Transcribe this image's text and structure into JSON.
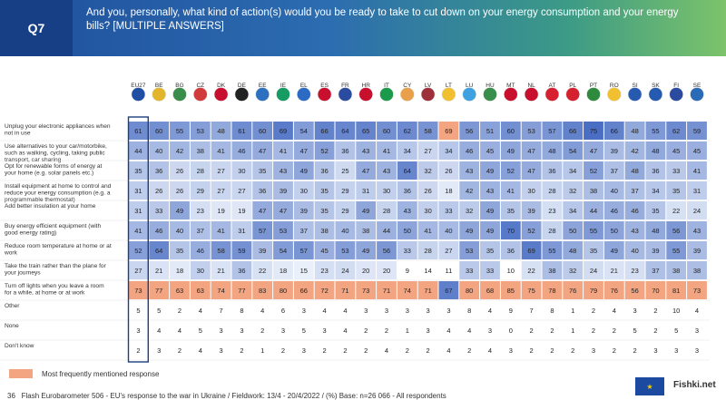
{
  "header": {
    "question_number": "Q7",
    "title": "And you, personally, what kind of action(s) would you be ready to take to cut down on your energy consumption and your energy bills? [MULTIPLE ANSWERS]"
  },
  "legend": {
    "label": "Most frequently mentioned response",
    "highlight_color": "#f3a582"
  },
  "footer": {
    "source": "Flash Eurobarometer 506 - EU's response to the war in Ukraine   /   Fieldwork: 13/4 - 20/4/2022   /   (%) Base: n=26 066 - All respondents",
    "page": "36"
  },
  "logo": {
    "text": "★",
    "watermark": "Fishki.net"
  },
  "chart_data": {
    "type": "heatmap",
    "countries": [
      "EU27",
      "BE",
      "BG",
      "CZ",
      "DK",
      "DE",
      "EE",
      "IE",
      "EL",
      "ES",
      "FR",
      "HR",
      "IT",
      "CY",
      "LV",
      "LT",
      "LU",
      "HU",
      "MT",
      "NL",
      "AT",
      "PL",
      "PT",
      "RO",
      "SI",
      "SK",
      "FI",
      "SE"
    ],
    "rows": [
      {
        "label": "Unplug your electronic appliances when not in use",
        "values": [
          61,
          60,
          55,
          53,
          48,
          61,
          60,
          69,
          54,
          66,
          64,
          65,
          60,
          62,
          58,
          69,
          56,
          51,
          60,
          53,
          57,
          66,
          75,
          66,
          48,
          55,
          62,
          59
        ],
        "top": [
          15
        ]
      },
      {
        "label": "Use alternatives to your car/motorbike, such as walking, cycling, taking public transport, car sharing",
        "values": [
          44,
          40,
          42,
          38,
          41,
          46,
          47,
          41,
          47,
          52,
          36,
          43,
          41,
          34,
          27,
          34,
          46,
          45,
          49,
          47,
          48,
          54,
          47,
          39,
          42,
          48,
          45,
          45
        ],
        "top": []
      },
      {
        "label": "Opt for renewable forms of energy at your home (e.g. solar panels etc.)",
        "values": [
          35,
          36,
          26,
          28,
          27,
          30,
          35,
          43,
          49,
          36,
          25,
          47,
          43,
          64,
          32,
          26,
          43,
          49,
          52,
          47,
          36,
          34,
          52,
          37,
          48,
          36,
          33,
          41
        ],
        "top": []
      },
      {
        "label": "Install equipment at home to control and reduce your energy consumption (e.g. a programmable thermostat)",
        "values": [
          31,
          26,
          26,
          29,
          27,
          27,
          36,
          39,
          30,
          35,
          29,
          31,
          30,
          36,
          26,
          18,
          42,
          43,
          41,
          30,
          28,
          32,
          38,
          40,
          37,
          34,
          35,
          31
        ],
        "top": []
      },
      {
        "label": "Add better insulation at your home",
        "values": [
          31,
          33,
          49,
          23,
          19,
          19,
          47,
          47,
          39,
          35,
          29,
          49,
          28,
          43,
          30,
          33,
          32,
          49,
          35,
          39,
          23,
          34,
          44,
          46,
          46,
          35,
          22,
          24
        ],
        "top": []
      },
      {
        "label": "Buy energy efficient equipment (with good energy rating)",
        "values": [
          41,
          46,
          40,
          37,
          41,
          31,
          57,
          53,
          37,
          38,
          40,
          38,
          44,
          50,
          41,
          40,
          49,
          49,
          70,
          52,
          28,
          50,
          55,
          50,
          43,
          48,
          56,
          43
        ],
        "top": []
      },
      {
        "label": "Reduce room temperature at home or at work",
        "values": [
          52,
          64,
          35,
          46,
          58,
          59,
          39,
          54,
          57,
          45,
          53,
          49,
          56,
          33,
          28,
          27,
          53,
          35,
          36,
          69,
          55,
          48,
          35,
          49,
          40,
          39,
          55,
          39
        ],
        "top": []
      },
      {
        "label": "Take the train rather than the plane for your journeys",
        "values": [
          27,
          21,
          18,
          30,
          21,
          36,
          22,
          18,
          15,
          23,
          24,
          20,
          20,
          9,
          14,
          11,
          33,
          33,
          10,
          22,
          38,
          32,
          24,
          21,
          23,
          37,
          38,
          38
        ],
        "top": []
      },
      {
        "label": "Turn off lights when you leave a room for a while, at home or at work",
        "values": [
          73,
          77,
          63,
          63,
          74,
          77,
          83,
          80,
          66,
          72,
          71,
          73,
          71,
          74,
          71,
          67,
          80,
          68,
          85,
          75,
          78,
          76,
          79,
          76,
          56,
          70,
          81,
          73
        ],
        "top": [
          0,
          1,
          2,
          3,
          4,
          5,
          6,
          7,
          8,
          9,
          10,
          11,
          12,
          13,
          14,
          16,
          17,
          18,
          19,
          20,
          21,
          22,
          23,
          24,
          25,
          26,
          27
        ]
      },
      {
        "label": "Other",
        "values": [
          5,
          5,
          2,
          4,
          7,
          8,
          4,
          6,
          3,
          4,
          4,
          3,
          3,
          3,
          3,
          3,
          8,
          4,
          9,
          7,
          8,
          1,
          2,
          4,
          3,
          2,
          10,
          4
        ],
        "top": []
      },
      {
        "label": "None",
        "values": [
          3,
          4,
          4,
          5,
          3,
          3,
          2,
          3,
          5,
          3,
          4,
          2,
          2,
          1,
          3,
          4,
          4,
          3,
          0,
          2,
          2,
          1,
          2,
          2,
          5,
          2,
          5,
          3
        ],
        "top": []
      },
      {
        "label": "Don't know",
        "values": [
          2,
          3,
          2,
          4,
          3,
          2,
          1,
          2,
          3,
          2,
          2,
          2,
          4,
          2,
          2,
          4,
          2,
          4,
          3,
          2,
          2,
          2,
          3,
          2,
          2,
          3,
          3,
          3
        ],
        "top": []
      }
    ]
  }
}
